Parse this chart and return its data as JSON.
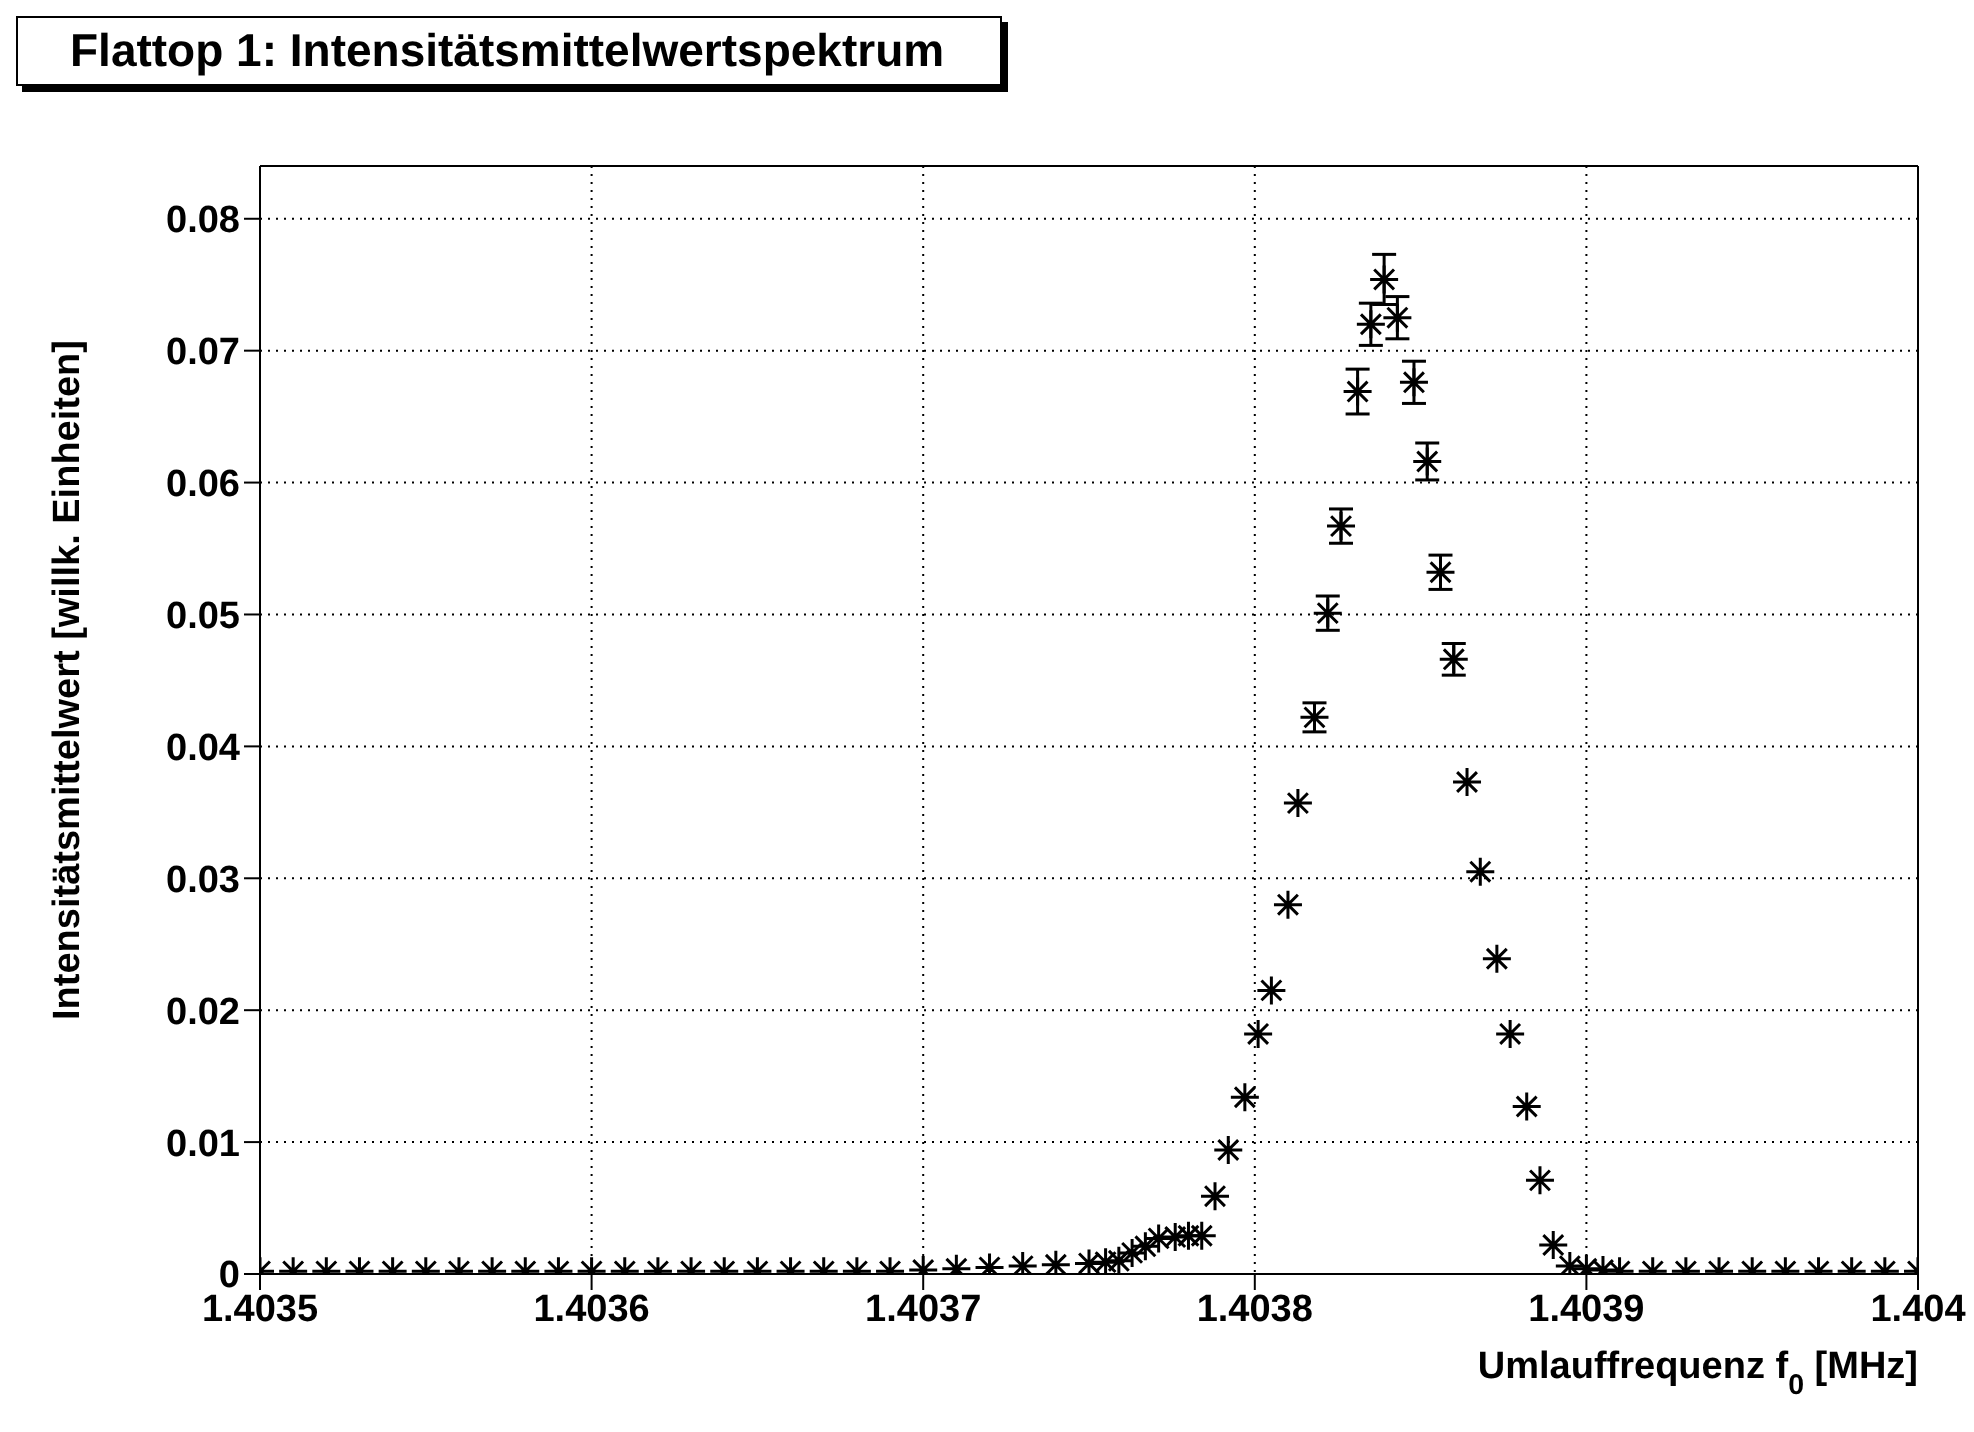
{
  "chart_data": {
    "type": "scatter",
    "title": "Flattop 1: Intensitätsmittelwertspektrum",
    "xlabel": "Umlauffrequenz f$_{0}$ [MHz]",
    "ylabel": "Intensitätsmittelwert [willk. Einheiten]",
    "xlim": [
      1.4035,
      1.404
    ],
    "xticks": [
      1.4035,
      1.4036,
      1.4037,
      1.4038,
      1.4039,
      1.404
    ],
    "ylim": [
      0,
      0.084
    ],
    "yticks": [
      0,
      0.01,
      0.02,
      0.03,
      0.04,
      0.05,
      0.06,
      0.07,
      0.08
    ],
    "grid": true,
    "marker": "cross",
    "series": [
      {
        "color": "#000000",
        "x": [
          1.4035,
          1.40351,
          1.40352,
          1.40353,
          1.40354,
          1.40355,
          1.40356,
          1.40357,
          1.40358,
          1.40359,
          1.4036,
          1.40361,
          1.40362,
          1.40363,
          1.40364,
          1.40365,
          1.40366,
          1.40367,
          1.40368,
          1.40369,
          1.4037,
          1.40371,
          1.40372,
          1.40373,
          1.40374,
          1.40375,
          1.403755,
          1.403759,
          1.403763,
          1.403767,
          1.403771,
          1.403776,
          1.40378,
          1.403784,
          1.403788,
          1.403792,
          1.403797,
          1.403801,
          1.403805,
          1.40381,
          1.403813,
          1.403818,
          1.403822,
          1.403826,
          1.403831,
          1.403835,
          1.403839,
          1.403843,
          1.403848,
          1.403852,
          1.403856,
          1.40386,
          1.403864,
          1.403868,
          1.403873,
          1.403877,
          1.403882,
          1.403886,
          1.40389,
          1.403895,
          1.4039,
          1.403905,
          1.40391,
          1.40392,
          1.40393,
          1.40394,
          1.40395,
          1.40396,
          1.40397,
          1.40398,
          1.40399,
          1.404
        ],
        "values": [
          0.0002,
          0.0002,
          0.0002,
          0.0002,
          0.0002,
          0.0002,
          0.0002,
          0.0002,
          0.0002,
          0.0002,
          0.0002,
          0.0002,
          0.0002,
          0.0002,
          0.0002,
          0.0002,
          0.0002,
          0.0002,
          0.0002,
          0.0002,
          0.0003,
          0.0004,
          0.0005,
          0.0006,
          0.0007,
          0.0008,
          0.0009,
          0.001,
          0.0016,
          0.0021,
          0.0027,
          0.0028,
          0.0029,
          0.0029,
          0.0059,
          0.0094,
          0.0134,
          0.0182,
          0.0215,
          0.028,
          0.0357,
          0.0422,
          0.0501,
          0.0567,
          0.0669,
          0.072,
          0.0754,
          0.0725,
          0.0676,
          0.0616,
          0.0532,
          0.0466,
          0.0373,
          0.0305,
          0.0239,
          0.0182,
          0.0127,
          0.0071,
          0.0022,
          0.0006,
          0.0004,
          0.0003,
          0.0002,
          0.0002,
          0.0002,
          0.0002,
          0.0002,
          0.0002,
          0.0002,
          0.0002,
          0.0002,
          0.0002
        ],
        "errors": [
          null,
          null,
          null,
          null,
          null,
          null,
          null,
          null,
          null,
          null,
          null,
          null,
          null,
          null,
          null,
          null,
          null,
          null,
          null,
          null,
          null,
          null,
          null,
          null,
          null,
          null,
          null,
          null,
          null,
          null,
          null,
          null,
          null,
          null,
          null,
          null,
          null,
          null,
          null,
          null,
          null,
          0.0011,
          0.0013,
          0.0013,
          0.0017,
          0.0016,
          0.0019,
          0.0016,
          0.0016,
          0.0014,
          0.0013,
          0.0012,
          null,
          null,
          null,
          null,
          null,
          null,
          null,
          null,
          null,
          null,
          null,
          null,
          null,
          null,
          null,
          null,
          null,
          null,
          null,
          null
        ]
      }
    ]
  }
}
